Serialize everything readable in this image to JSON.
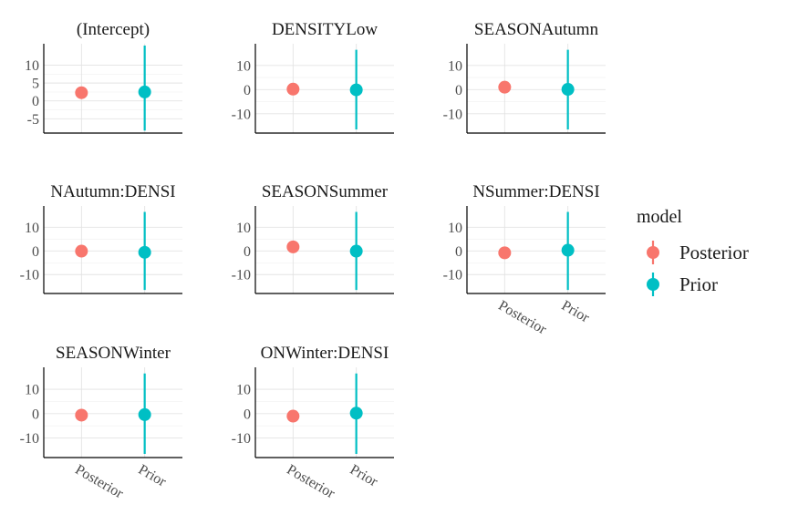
{
  "chart_data": {
    "type": "scatter",
    "x_categories": [
      "Posterior",
      "Prior"
    ],
    "legend": {
      "title": "model",
      "placement": "right",
      "entries": [
        {
          "label": "Posterior",
          "color": "#F8766D"
        },
        {
          "label": "Prior",
          "color": "#00BFC4"
        }
      ]
    },
    "panels": [
      {
        "title": "(Intercept)",
        "ylim": [
          -9,
          16
        ],
        "yticks": [
          -5,
          0,
          5,
          10
        ],
        "points": [
          {
            "model": "Posterior",
            "y": 2.3,
            "lo": 2.3,
            "hi": 2.3
          },
          {
            "model": "Prior",
            "y": 2.5,
            "lo": -8.3,
            "hi": 15.5
          }
        ]
      },
      {
        "title": "DENSITYLow",
        "ylim": [
          -18,
          19
        ],
        "yticks": [
          -10,
          0,
          10
        ],
        "points": [
          {
            "model": "Posterior",
            "y": 0.2,
            "lo": 0.2,
            "hi": 0.2
          },
          {
            "model": "Prior",
            "y": -0.1,
            "lo": -16.5,
            "hi": 16.5
          }
        ]
      },
      {
        "title": "SEASONAutumn",
        "ylim": [
          -18,
          19
        ],
        "yticks": [
          -10,
          0,
          10
        ],
        "points": [
          {
            "model": "Posterior",
            "y": 1.0,
            "lo": 1.0,
            "hi": 1.0
          },
          {
            "model": "Prior",
            "y": 0.1,
            "lo": -16.5,
            "hi": 16.5
          }
        ]
      },
      {
        "title": "NAutumn:DENSI",
        "ylim": [
          -18,
          19
        ],
        "yticks": [
          -10,
          0,
          10
        ],
        "points": [
          {
            "model": "Posterior",
            "y": -0.1,
            "lo": -0.1,
            "hi": -0.1
          },
          {
            "model": "Prior",
            "y": -0.6,
            "lo": -16.5,
            "hi": 16.5
          }
        ]
      },
      {
        "title": "SEASONSummer",
        "ylim": [
          -18,
          19
        ],
        "yticks": [
          -10,
          0,
          10
        ],
        "points": [
          {
            "model": "Posterior",
            "y": 1.7,
            "lo": 1.7,
            "hi": 1.7
          },
          {
            "model": "Prior",
            "y": -0.1,
            "lo": -16.5,
            "hi": 16.5
          }
        ]
      },
      {
        "title": "NSummer:DENSI",
        "ylim": [
          -18,
          19
        ],
        "yticks": [
          -10,
          0,
          10
        ],
        "points": [
          {
            "model": "Posterior",
            "y": -0.8,
            "lo": -0.8,
            "hi": -0.8
          },
          {
            "model": "Prior",
            "y": 0.3,
            "lo": -16.5,
            "hi": 16.5
          }
        ]
      },
      {
        "title": "SEASONWinter",
        "ylim": [
          -18,
          19
        ],
        "yticks": [
          -10,
          0,
          10
        ],
        "points": [
          {
            "model": "Posterior",
            "y": -0.6,
            "lo": -0.6,
            "hi": -0.6
          },
          {
            "model": "Prior",
            "y": -0.4,
            "lo": -16.5,
            "hi": 16.5
          }
        ]
      },
      {
        "title": "ONWinter:DENSI",
        "ylim": [
          -18,
          19
        ],
        "yticks": [
          -10,
          0,
          10
        ],
        "points": [
          {
            "model": "Posterior",
            "y": -1.0,
            "lo": -1.0,
            "hi": -1.0
          },
          {
            "model": "Prior",
            "y": 0.2,
            "lo": -16.5,
            "hi": 16.5
          }
        ]
      }
    ]
  }
}
